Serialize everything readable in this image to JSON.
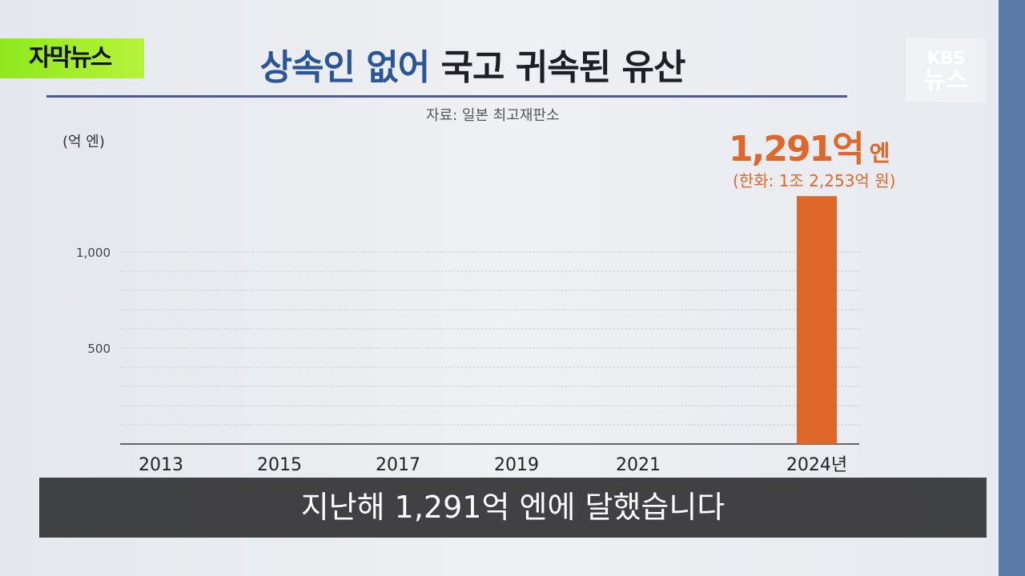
{
  "tag": "자막뉴스",
  "title": {
    "highlight": "상속인 없어",
    "rest": " 국고 귀속된 유산"
  },
  "source": "자료: 일본 최고재판소",
  "logo": {
    "line1": "KBS",
    "line2": "뉴스"
  },
  "highlight": {
    "value": "1,291억",
    "unit": "엔",
    "sub": "(한화: 1조 2,253억 원)"
  },
  "caption": "지난해 1,291억 엔에 달했습니다",
  "colors": {
    "bar": "#e0672a",
    "title_highlight": "#2a5597"
  },
  "chart_data": {
    "type": "bar",
    "ylabel": "(억 엔)",
    "ylim": [
      0,
      1300
    ],
    "yticks": [
      500,
      1000
    ],
    "ytick_labels": [
      "500",
      "1,000"
    ],
    "grid": true,
    "categories": [
      "2013",
      "2015",
      "2017",
      "2019",
      "2021",
      "2024년"
    ],
    "values": [
      null,
      null,
      null,
      null,
      null,
      1291
    ]
  }
}
